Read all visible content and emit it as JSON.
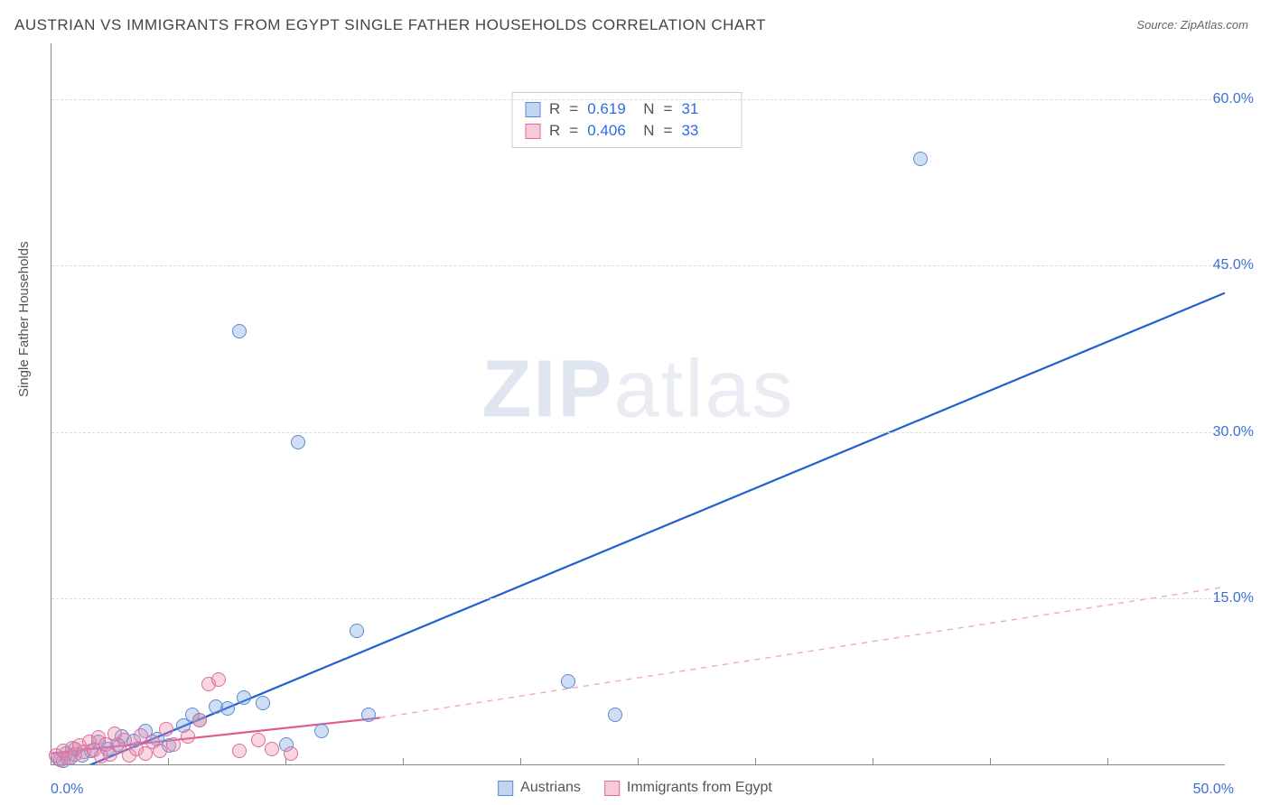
{
  "title": "AUSTRIAN VS IMMIGRANTS FROM EGYPT SINGLE FATHER HOUSEHOLDS CORRELATION CHART",
  "source_label": "Source:",
  "source_value": "ZipAtlas.com",
  "watermark": {
    "bold": "ZIP",
    "rest": "atlas"
  },
  "chart": {
    "type": "scatter",
    "ylabel": "Single Father Households",
    "xlim": [
      0,
      50
    ],
    "ylim": [
      0,
      65
    ],
    "x_ticks_labels": {
      "min": "0.0%",
      "max": "50.0%"
    },
    "x_minor_count": 10,
    "y_ticks": [
      {
        "v": 15,
        "label": "15.0%"
      },
      {
        "v": 30,
        "label": "30.0%"
      },
      {
        "v": 45,
        "label": "45.0%"
      },
      {
        "v": 60,
        "label": "60.0%"
      }
    ],
    "grid_color": "#dddddd",
    "axis_color": "#888888",
    "background_color": "#ffffff",
    "tick_label_color": "#3b6fd6",
    "label_fontsize": 15,
    "tick_fontsize": 16,
    "marker_radius": 8,
    "marker_radius_small": 6,
    "series": [
      {
        "name": "Austrians",
        "color_fill": "rgba(120,160,220,0.35)",
        "color_stroke": "#5b8bd4",
        "cls": "blue",
        "trend": {
          "x1": 0,
          "y1": -1.5,
          "x2": 50,
          "y2": 42.5,
          "stroke": "#1f5fd0",
          "width": 2.2,
          "dash": ""
        },
        "R": "0.619",
        "N": "31",
        "points": [
          [
            0.3,
            0.5
          ],
          [
            0.5,
            0.3
          ],
          [
            0.6,
            1.0
          ],
          [
            0.8,
            0.6
          ],
          [
            1.0,
            1.4
          ],
          [
            1.3,
            0.8
          ],
          [
            1.7,
            1.2
          ],
          [
            2.0,
            2.0
          ],
          [
            2.4,
            1.4
          ],
          [
            2.8,
            1.8
          ],
          [
            3.0,
            2.5
          ],
          [
            3.5,
            2.1
          ],
          [
            4.0,
            3.0
          ],
          [
            4.5,
            2.3
          ],
          [
            5.0,
            1.7
          ],
          [
            5.6,
            3.5
          ],
          [
            6.0,
            4.5
          ],
          [
            6.3,
            4.0
          ],
          [
            7.0,
            5.2
          ],
          [
            7.5,
            5.0
          ],
          [
            8.2,
            6.0
          ],
          [
            9.0,
            5.5
          ],
          [
            10.0,
            1.8
          ],
          [
            11.5,
            3.0
          ],
          [
            13.0,
            12.0
          ],
          [
            13.5,
            4.5
          ],
          [
            22.0,
            7.5
          ],
          [
            24.0,
            4.5
          ],
          [
            8.0,
            39.0
          ],
          [
            10.5,
            29.0
          ],
          [
            37.0,
            54.5
          ]
        ]
      },
      {
        "name": "Immigrants from Egypt",
        "color_fill": "rgba(235,140,170,0.35)",
        "color_stroke": "#e06a9a",
        "cls": "pink",
        "trend_solid": {
          "x1": 0,
          "y1": 1.0,
          "x2": 14,
          "y2": 4.2,
          "stroke": "#e05a8f",
          "width": 2.2
        },
        "trend_dash": {
          "x1": 14,
          "y1": 4.2,
          "x2": 50,
          "y2": 16.0,
          "stroke": "#f2a8c0",
          "width": 1.4,
          "dash": "6 6"
        },
        "R": "0.406",
        "N": "33",
        "points": [
          [
            0.2,
            0.8
          ],
          [
            0.4,
            0.4
          ],
          [
            0.5,
            1.2
          ],
          [
            0.7,
            0.6
          ],
          [
            0.9,
            1.5
          ],
          [
            1.0,
            0.9
          ],
          [
            1.2,
            1.7
          ],
          [
            1.4,
            1.1
          ],
          [
            1.6,
            2.0
          ],
          [
            1.8,
            1.3
          ],
          [
            2.0,
            2.4
          ],
          [
            2.1,
            0.7
          ],
          [
            2.3,
            1.8
          ],
          [
            2.5,
            0.9
          ],
          [
            2.7,
            2.8
          ],
          [
            2.9,
            1.6
          ],
          [
            3.1,
            2.2
          ],
          [
            3.3,
            0.8
          ],
          [
            3.6,
            1.4
          ],
          [
            3.8,
            2.6
          ],
          [
            4.0,
            1.0
          ],
          [
            4.3,
            2.0
          ],
          [
            4.6,
            1.2
          ],
          [
            4.9,
            3.2
          ],
          [
            5.2,
            1.8
          ],
          [
            5.8,
            2.5
          ],
          [
            6.3,
            4.0
          ],
          [
            6.7,
            7.2
          ],
          [
            7.1,
            7.6
          ],
          [
            8.0,
            1.2
          ],
          [
            8.8,
            2.2
          ],
          [
            9.4,
            1.4
          ],
          [
            10.2,
            1.0
          ]
        ]
      }
    ],
    "stats_labels": {
      "R": "R",
      "N": "N",
      "eq": "="
    },
    "bottom_legend": [
      {
        "cls": "blue",
        "label": "Austrians"
      },
      {
        "cls": "pink",
        "label": "Immigrants from Egypt"
      }
    ]
  }
}
